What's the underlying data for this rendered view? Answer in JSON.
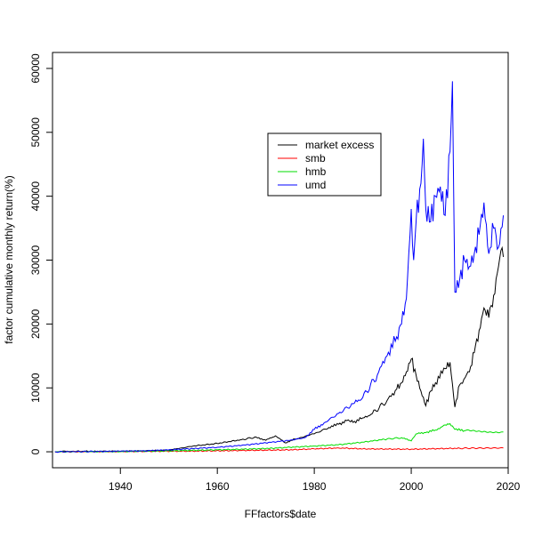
{
  "chart_data": {
    "type": "line",
    "title": "",
    "xlabel": "FFfactors$date",
    "ylabel": "factor cumulative monthly return(%)",
    "xlim": [
      1926,
      2020
    ],
    "ylim": [
      -2500,
      62500
    ],
    "x_ticks": [
      1940,
      1960,
      1980,
      2000,
      2020
    ],
    "x_tick_labels": [
      "1940",
      "1960",
      "1980",
      "2000",
      "2020"
    ],
    "y_ticks": [
      0,
      10000,
      20000,
      30000,
      40000,
      50000,
      60000
    ],
    "y_tick_labels": [
      "0",
      "10000",
      "20000",
      "30000",
      "40000",
      "50000",
      "60000"
    ],
    "grid": false,
    "legend_position": "top-right",
    "series": [
      {
        "name": "market excess",
        "color": "#000000",
        "x": [
          1926.5,
          1930,
          1935,
          1940,
          1945,
          1950,
          1952,
          1955,
          1960,
          1965,
          1968,
          1970,
          1972,
          1974,
          1976,
          1980,
          1983,
          1985,
          1987,
          1988,
          1990,
          1992,
          1995,
          1997,
          1998,
          1999,
          2000,
          2001,
          2002,
          2003,
          2004,
          2005,
          2007,
          2008,
          2009,
          2010,
          2012,
          2013,
          2014,
          2015,
          2016,
          2017,
          2018,
          2018.5,
          2019
        ],
        "values": [
          0,
          80,
          50,
          60,
          120,
          250,
          500,
          900,
          1300,
          1900,
          2300,
          1800,
          2500,
          1400,
          2000,
          2800,
          3800,
          4300,
          5000,
          4600,
          5300,
          6000,
          8000,
          9800,
          10800,
          12500,
          14500,
          12000,
          9500,
          7200,
          9500,
          10800,
          13000,
          14000,
          7000,
          10500,
          12500,
          15500,
          19000,
          22500,
          21000,
          24500,
          29000,
          31500,
          30500
        ]
      },
      {
        "name": "smb",
        "color": "#ff0000",
        "x": [
          1926.5,
          1935,
          1945,
          1955,
          1965,
          1975,
          1980,
          1985,
          1990,
          2000,
          2010,
          2019
        ],
        "values": [
          0,
          20,
          60,
          100,
          200,
          300,
          450,
          600,
          450,
          400,
          550,
          600
        ]
      },
      {
        "name": "hmb",
        "color": "#00dd00",
        "x": [
          1926.5,
          1940,
          1950,
          1960,
          1970,
          1975,
          1980,
          1985,
          1990,
          1995,
          1998,
          2000,
          2001,
          2003,
          2005,
          2007,
          2008,
          2009,
          2011,
          2015,
          2019
        ],
        "values": [
          0,
          40,
          150,
          300,
          500,
          700,
          900,
          1100,
          1500,
          2000,
          2200,
          1700,
          2800,
          3000,
          3400,
          4200,
          4400,
          3500,
          3300,
          3200,
          3100
        ]
      },
      {
        "name": "umd",
        "color": "#0000ff",
        "x": [
          1926.5,
          1935,
          1940,
          1945,
          1950,
          1955,
          1960,
          1965,
          1970,
          1975,
          1978,
          1980,
          1982,
          1985,
          1988,
          1990,
          1993,
          1995,
          1997,
          1998,
          1999,
          2000,
          2000.5,
          2001,
          2002,
          2002.5,
          2003,
          2004,
          2005,
          2006,
          2007,
          2008,
          2008.5,
          2009,
          2010,
          2011,
          2012,
          2013,
          2014,
          2015,
          2016,
          2017,
          2018,
          2019
        ],
        "values": [
          0,
          50,
          100,
          150,
          300,
          500,
          700,
          1000,
          1400,
          1800,
          2200,
          3500,
          4500,
          6000,
          7500,
          8500,
          12000,
          15000,
          18000,
          20000,
          24000,
          38000,
          30000,
          36000,
          42000,
          49000,
          38000,
          36000,
          40000,
          41500,
          37000,
          47000,
          58000,
          25000,
          27000,
          30000,
          29000,
          31000,
          34000,
          39000,
          31000,
          35000,
          32000,
          37000
        ]
      }
    ]
  }
}
